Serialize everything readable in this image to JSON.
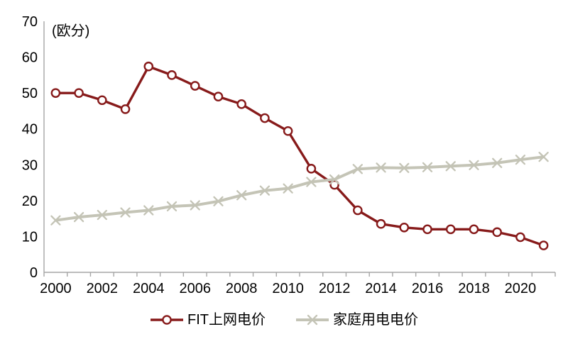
{
  "chart_data": {
    "type": "line",
    "title": "",
    "unit_label": "(欧分)",
    "xlabel": "",
    "ylabel": "",
    "ylim": [
      0,
      70
    ],
    "y_ticks": [
      0,
      10,
      20,
      30,
      40,
      50,
      60,
      70
    ],
    "x": [
      2000,
      2001,
      2002,
      2003,
      2004,
      2005,
      2006,
      2007,
      2008,
      2009,
      2010,
      2011,
      2012,
      2013,
      2014,
      2015,
      2016,
      2017,
      2018,
      2019,
      2020,
      2021
    ],
    "x_tick_labels": [
      "2000",
      "2002",
      "2004",
      "2006",
      "2008",
      "2010",
      "2012",
      "2014",
      "2016",
      "2018",
      "2020"
    ],
    "grid": false,
    "legend_position": "bottom",
    "series": [
      {
        "name": "FIT上网电价",
        "color": "#871A1A",
        "marker": "circle",
        "values": [
          50,
          50,
          48,
          45.5,
          57.4,
          55,
          52,
          49,
          46.9,
          43,
          39.4,
          28.9,
          24.4,
          17.3,
          13.5,
          12.5,
          12,
          12,
          12,
          11.2,
          9.8,
          7.5
        ]
      },
      {
        "name": "家庭用电电价",
        "color": "#C4C4B6",
        "marker": "x",
        "values": [
          14.5,
          15.4,
          16,
          16.7,
          17.3,
          18.4,
          18.7,
          19.8,
          21.5,
          22.8,
          23.4,
          25.2,
          25.9,
          28.8,
          29.2,
          29.1,
          29.3,
          29.6,
          29.9,
          30.5,
          31.4,
          32.2
        ]
      }
    ],
    "axis_color": "#A6A6A6",
    "text_color": "#000000"
  }
}
